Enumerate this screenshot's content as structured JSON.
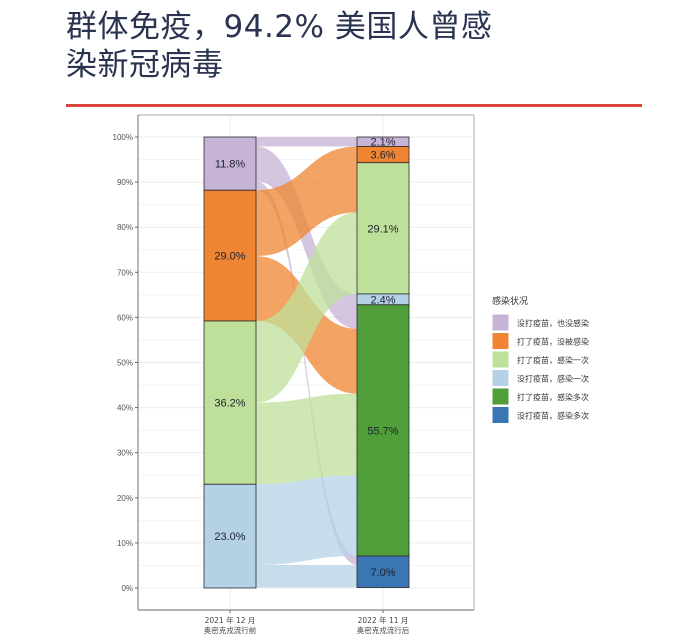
{
  "header": {
    "title_line1": "群体免疫，94.2% 美国人曾感",
    "title_line2": "染新冠病毒"
  },
  "chart_data": {
    "type": "alluvial",
    "title": "群体免疫，94.2% 美国人曾感染新冠病毒",
    "xlabel": "",
    "ylabel": "",
    "ylim": [
      0,
      100
    ],
    "yticks": [
      "0%",
      "10%",
      "20%",
      "30%",
      "40%",
      "50%",
      "60%",
      "70%",
      "80%",
      "90%",
      "100%"
    ],
    "categories": [
      {
        "line1": "2021 年 12 月",
        "line2": "奥密克戎流行前"
      },
      {
        "line1": "2022 年 11 月",
        "line2": "奥密克戎流行后"
      }
    ],
    "legend": {
      "title": "感染状况",
      "position": "right",
      "items": [
        {
          "label": "没打疫苗，也没感染",
          "color": "#c7b3d6"
        },
        {
          "label": "打了疫苗，没被感染",
          "color": "#ef8532"
        },
        {
          "label": "打了疫苗，感染一次",
          "color": "#bfe09a"
        },
        {
          "label": "没打疫苗，感染一次",
          "color": "#b4d1e6"
        },
        {
          "label": "打了疫苗，感染多次",
          "color": "#4f9e3a"
        },
        {
          "label": "没打疫苗，感染多次",
          "color": "#3a76b4"
        }
      ]
    },
    "stacks": [
      {
        "axis": "2021 年 12 月",
        "segments": [
          {
            "status": "没打疫苗，也没感染",
            "value": 11.8,
            "label": "11.8%"
          },
          {
            "status": "打了疫苗，没被感染",
            "value": 29.0,
            "label": "29.0%"
          },
          {
            "status": "打了疫苗，感染一次",
            "value": 36.2,
            "label": "36.2%"
          },
          {
            "status": "没打疫苗，感染一次",
            "value": 23.0,
            "label": "23.0%"
          }
        ]
      },
      {
        "axis": "2022 年 11 月",
        "segments": [
          {
            "status": "没打疫苗，也没感染",
            "value": 2.1,
            "label": "2.1%"
          },
          {
            "status": "打了疫苗，没被感染",
            "value": 3.6,
            "label": "3.6%"
          },
          {
            "status": "打了疫苗，感染一次",
            "value": 29.1,
            "label": "29.1%"
          },
          {
            "status": "没打疫苗，感染一次",
            "value": 2.4,
            "label": "2.4%"
          },
          {
            "status": "打了疫苗，感染多次",
            "value": 55.7,
            "label": "55.7%"
          },
          {
            "status": "没打疫苗，感染多次",
            "value": 7.0,
            "label": "7.0%"
          }
        ]
      }
    ],
    "grid": true
  }
}
